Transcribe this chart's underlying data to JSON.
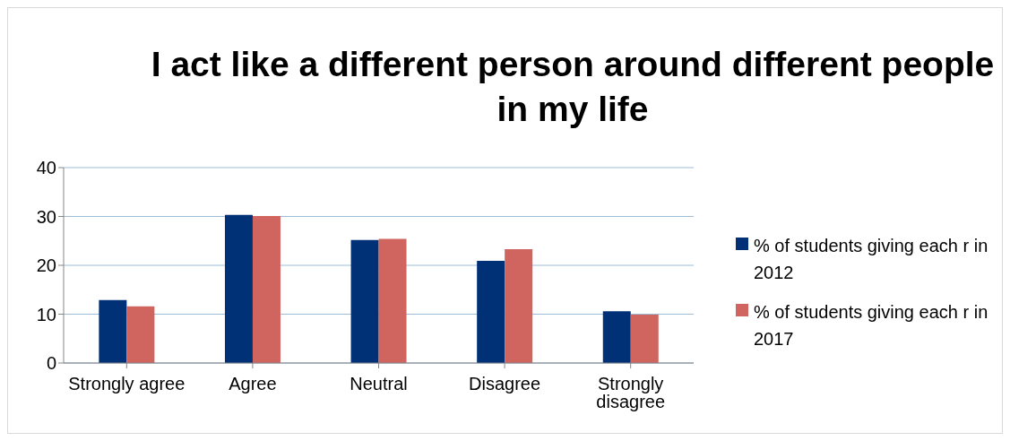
{
  "chart_data": {
    "type": "bar",
    "title": "I act like a different person around different people in my life",
    "categories": [
      "Strongly agree",
      "Agree",
      "Neutral",
      "Disagree",
      "Strongly disagree"
    ],
    "series": [
      {
        "name": "% of students giving each r in 2012",
        "color": "#003176",
        "values": [
          12.9,
          30.3,
          25.2,
          20.9,
          10.6
        ]
      },
      {
        "name": "% of students giving each r in 2017",
        "color": "#d06560",
        "values": [
          11.6,
          30.1,
          25.4,
          23.3,
          9.9
        ]
      }
    ],
    "ylim": [
      0,
      40
    ],
    "yticks": [
      0,
      10,
      20,
      30,
      40
    ],
    "grid": "y",
    "legend": "right"
  }
}
